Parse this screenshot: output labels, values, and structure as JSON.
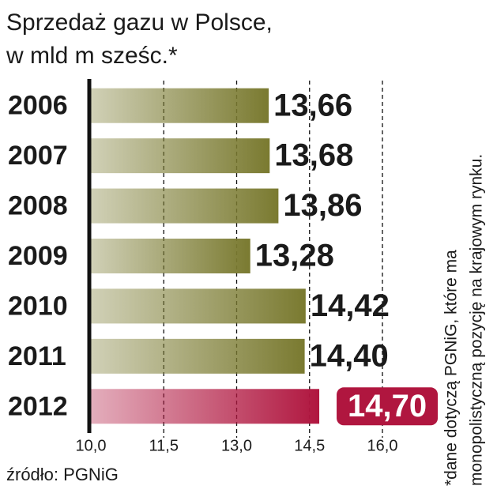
{
  "chart_data": {
    "type": "hbar",
    "title": [
      "Sprzedaż gazu w Polsce,",
      "w mld m sześc.*"
    ],
    "categories": [
      "2006",
      "2007",
      "2008",
      "2009",
      "2010",
      "2011",
      "2012"
    ],
    "values": [
      13.66,
      13.68,
      13.86,
      13.28,
      14.42,
      14.4,
      14.7
    ],
    "value_labels": [
      "13,66",
      "13,68",
      "13,86",
      "13,28",
      "14,42",
      "14,40",
      "14,70"
    ],
    "colors": [
      "#7a7a30",
      "#7a7a30",
      "#7a7a30",
      "#7a7a30",
      "#7a7a30",
      "#7a7a30",
      "#b0163f"
    ],
    "xlim": [
      10,
      16
    ],
    "xticks": [
      {
        "value": 10,
        "label": "10,0"
      },
      {
        "value": 11.5,
        "label": "11,5"
      },
      {
        "value": 13,
        "label": "13,0"
      },
      {
        "value": 14.5,
        "label": "14,5"
      },
      {
        "value": 16,
        "label": "16,0"
      }
    ],
    "grid": true,
    "source": "źródło: PGNiG",
    "note": [
      "*dane dotyczą PGNiG, które ma",
      "monopolistyczną pozycję na krajowym rynku."
    ]
  }
}
